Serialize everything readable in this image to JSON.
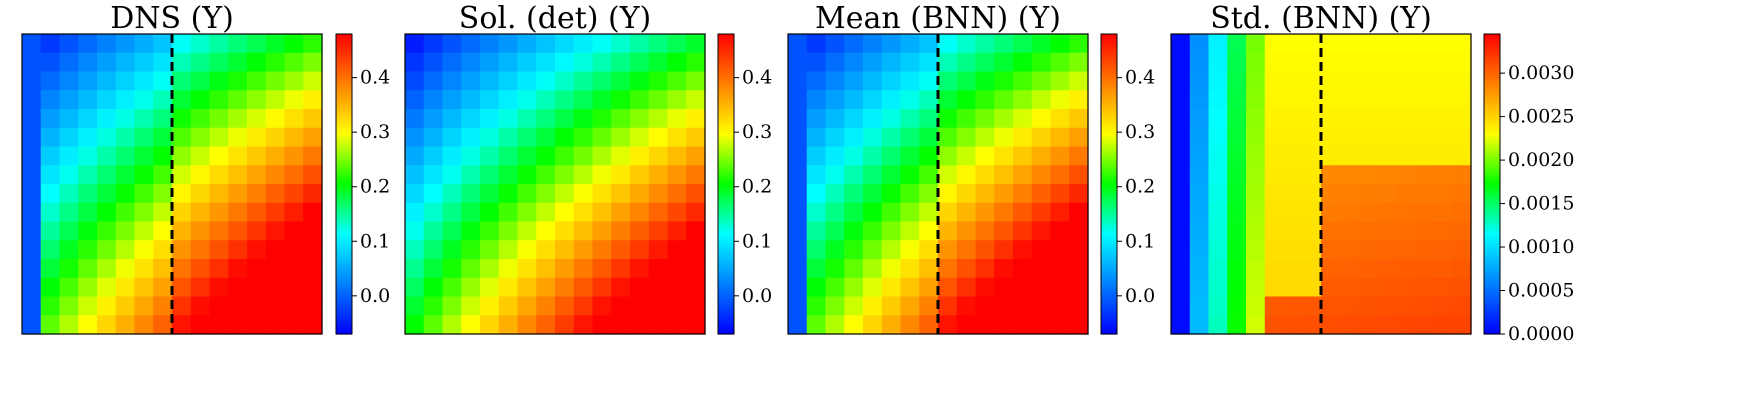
{
  "colormap": [
    "#0000ff",
    "#0080ff",
    "#00ffff",
    "#00ff00",
    "#ffff00",
    "#ff8000",
    "#ff0000"
  ],
  "divider_color": "#000000",
  "chart_data": [
    {
      "type": "heatmap",
      "title": "DNS (Y)",
      "rows": 16,
      "cols": 16,
      "field": "dns",
      "clim": [
        -0.07,
        0.48
      ],
      "divider_col": 7.5,
      "colorbar_ticks": [
        0.0,
        0.1,
        0.2,
        0.3,
        0.4
      ],
      "colorbar_labels": [
        "0.0",
        "0.1",
        "0.2",
        "0.3",
        "0.4"
      ],
      "grid": false
    },
    {
      "type": "heatmap",
      "title": "Sol. (det) (Y)",
      "rows": 16,
      "cols": 16,
      "field": "smooth",
      "clim": [
        -0.07,
        0.48
      ],
      "divider_col": null,
      "colorbar_ticks": [
        0.0,
        0.1,
        0.2,
        0.3,
        0.4
      ],
      "colorbar_labels": [
        "0.0",
        "0.1",
        "0.2",
        "0.3",
        "0.4"
      ],
      "grid": false
    },
    {
      "type": "heatmap",
      "title": "Mean (BNN) (Y)",
      "rows": 16,
      "cols": 16,
      "field": "dns",
      "clim": [
        -0.07,
        0.48
      ],
      "divider_col": 7.5,
      "colorbar_ticks": [
        0.0,
        0.1,
        0.2,
        0.3,
        0.4
      ],
      "colorbar_labels": [
        "0.0",
        "0.1",
        "0.2",
        "0.3",
        "0.4"
      ],
      "grid": false
    },
    {
      "type": "heatmap",
      "title": "Std. (BNN) (Y)",
      "rows": 16,
      "cols": 16,
      "field": "std",
      "clim": [
        0.0,
        0.00345
      ],
      "divider_col": 7.5,
      "colorbar_ticks": [
        0.0,
        0.0005,
        0.001,
        0.0015,
        0.002,
        0.0025,
        0.003
      ],
      "colorbar_labels": [
        "0.0000",
        "0.0005",
        "0.0010",
        "0.0015",
        "0.0020",
        "0.0025",
        "0.0030"
      ],
      "grid": false
    }
  ]
}
